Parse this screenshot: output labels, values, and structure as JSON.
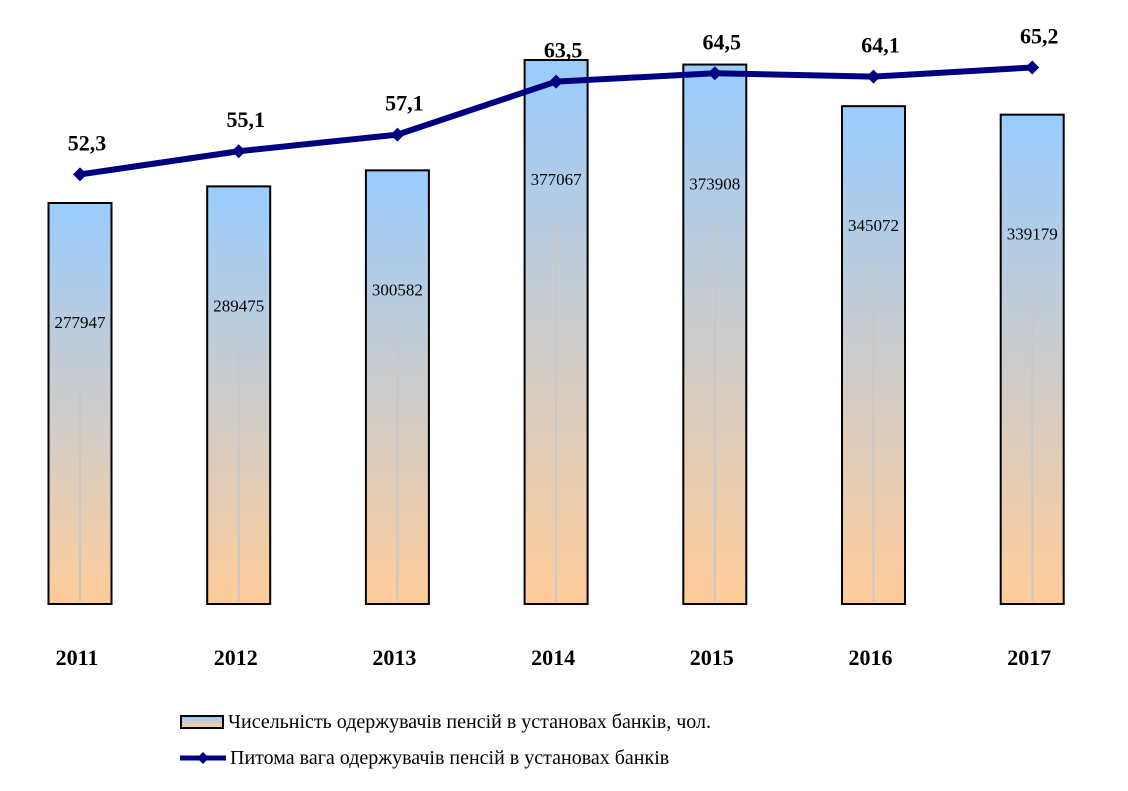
{
  "chart_data": {
    "type": "bar",
    "categories": [
      "2011",
      "2012",
      "2013",
      "2014",
      "2015",
      "2016",
      "2017"
    ],
    "series": [
      {
        "name": "Чисельність одержувачів пенсій в установах банків, чол.",
        "type": "bar",
        "axis": "primary",
        "values": [
          277947,
          289475,
          300582,
          377067,
          373908,
          345072,
          339179
        ],
        "labels": [
          "277947",
          "289475",
          "300582",
          "377067",
          "373908",
          "345072",
          "339179"
        ]
      },
      {
        "name": "Питома вага одержувачів пенсій в установах банків",
        "type": "line",
        "axis": "secondary",
        "values": [
          52.3,
          55.1,
          57.1,
          63.5,
          64.5,
          64.1,
          65.2
        ],
        "labels": [
          "52,3",
          "55,1",
          "57,1",
          "63,5",
          "64,5",
          "64,1",
          "65,2"
        ]
      }
    ],
    "primary_ylim": [
      0,
      377067
    ],
    "secondary_ylim": [
      0,
      73
    ],
    "grid": false,
    "legend_position": "bottom",
    "colors": {
      "bar_top": "#99ccff",
      "bar_bottom": "#ffcc99",
      "line": "#000080"
    }
  }
}
